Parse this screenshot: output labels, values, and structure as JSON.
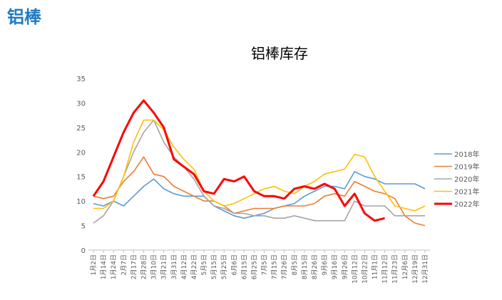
{
  "page_title": "铝棒",
  "chart_data": {
    "type": "line",
    "title": "铝棒库存",
    "categories": [
      "1月2日",
      "1月14日",
      "1月24日",
      "2月7日",
      "2月17日",
      "2月28日",
      "3月10日",
      "3月21日",
      "3月31日",
      "4月12日",
      "4月22日",
      "5月5日",
      "5月15日",
      "5月25日",
      "6月6日",
      "6月15日",
      "6月25日",
      "7月5日",
      "7月15日",
      "7月26日",
      "8月5日",
      "8月15日",
      "8月26日",
      "9月6日",
      "9月16日",
      "9月26日",
      "10月12日",
      "10月22日",
      "11月1日",
      "11月12日",
      "11月23日",
      "12月6日",
      "12月19日",
      "12月31日"
    ],
    "series": [
      {
        "name": "2018年",
        "color": "#5b9bd5",
        "values": [
          9.5,
          9,
          10,
          9,
          11,
          13,
          14.5,
          12.5,
          11.5,
          11,
          11,
          11,
          9,
          8,
          7,
          6.5,
          7,
          7.5,
          8.5,
          9,
          9.5,
          11,
          12,
          13,
          13,
          12.5,
          16,
          15,
          14.5,
          13.5,
          13.5,
          13.5,
          13.5,
          12.5
        ]
      },
      {
        "name": "2019年",
        "color": "#ed7d31",
        "values": [
          11,
          10.5,
          11,
          14,
          16,
          19,
          15.5,
          15,
          13,
          12,
          11,
          10,
          10,
          9,
          7.5,
          8,
          8.5,
          8.5,
          8.5,
          9,
          9,
          9,
          9.5,
          11,
          11.5,
          11,
          14,
          13,
          12,
          11.5,
          10.5,
          7,
          5.5,
          5
        ]
      },
      {
        "name": "2020年",
        "color": "#a5a5a5",
        "values": [
          5.5,
          7,
          10,
          15,
          20,
          24,
          26.5,
          22,
          19,
          17,
          14.5,
          11,
          9,
          8.5,
          7.5,
          7.5,
          7,
          7,
          6.5,
          6.5,
          7,
          6.5,
          6,
          6,
          6,
          6,
          10,
          9,
          9,
          9,
          7,
          7,
          7,
          7
        ]
      },
      {
        "name": "2021年",
        "color": "#ffc000",
        "values": [
          8.5,
          8.5,
          10,
          15,
          22,
          26.5,
          26.5,
          24.5,
          21,
          18.5,
          16.5,
          12,
          10,
          9,
          9.5,
          10.5,
          11.5,
          12.5,
          13,
          12,
          11.5,
          13,
          14,
          15.5,
          16,
          16.5,
          19.5,
          19,
          15,
          12,
          9,
          8.5,
          8,
          9
        ]
      },
      {
        "name": "2022年",
        "color": "#ff0000",
        "values": [
          11,
          14,
          19,
          24,
          28,
          30.5,
          28,
          25,
          18.5,
          17,
          15.5,
          12,
          11.5,
          14.5,
          14,
          15,
          12,
          11,
          11,
          10.5,
          12.5,
          13,
          12.5,
          13.5,
          12.5,
          9,
          11.5,
          7.5,
          6,
          6.5,
          null,
          null,
          null,
          null
        ]
      }
    ],
    "ylim": [
      0,
      35
    ],
    "yticks": [
      0,
      5,
      10,
      15,
      20,
      25,
      30,
      35
    ],
    "grid": false,
    "legend": "right"
  }
}
